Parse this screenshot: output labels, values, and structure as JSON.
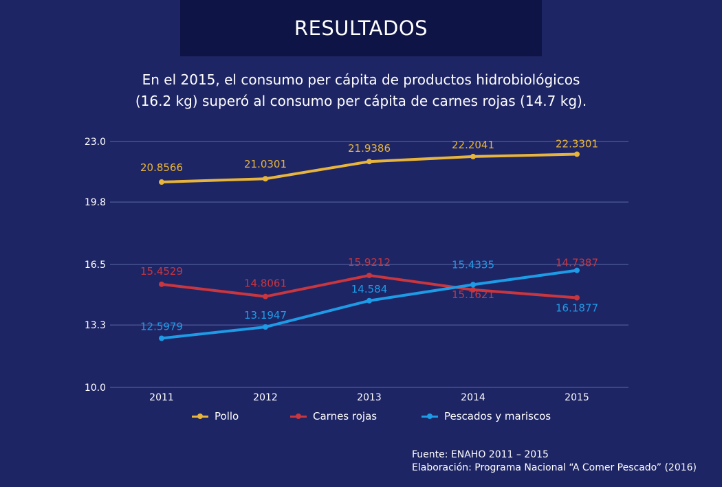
{
  "header": {
    "title": "RESULTADOS",
    "subtitle": "En el 2015, el consumo per cápita de productos hidrobiológicos (16.2 kg) superó al consumo per cápita de carnes rojas (14.7 kg)."
  },
  "chart_data": {
    "type": "line",
    "categories": [
      "2011",
      "2012",
      "2013",
      "2014",
      "2015"
    ],
    "y_ticks": [
      "23.0",
      "19.8",
      "16.5",
      "13.3",
      "10.0"
    ],
    "ylim": [
      10.0,
      23.0
    ],
    "grid": true,
    "legend_position": "bottom",
    "series": [
      {
        "name": "Pollo",
        "color": "#e8b53c",
        "values": [
          20.8566,
          21.0301,
          21.9386,
          22.2041,
          22.3301
        ],
        "labels": [
          "20.8566",
          "21.0301",
          "21.9386",
          "22.2041",
          "22.3301"
        ]
      },
      {
        "name": "Carnes rojas",
        "color": "#c8363f",
        "values": [
          15.4529,
          14.8061,
          15.9212,
          15.1621,
          14.7387
        ],
        "labels": [
          "15.4529",
          "14.8061",
          "15.9212",
          "15.1621",
          "14.7387"
        ]
      },
      {
        "name": "Pescados y mariscos",
        "color": "#1e9be6",
        "values": [
          12.5979,
          13.1947,
          14.584,
          15.4335,
          16.1877
        ],
        "labels": [
          "12.5979",
          "13.1947",
          "14.584",
          "15.4335",
          "16.1877"
        ]
      }
    ]
  },
  "footer": {
    "source": "Fuente: ENAHO 2011 – 2015",
    "credit": "Elaboración: Programa Nacional “A Comer Pescado” (2016)"
  }
}
